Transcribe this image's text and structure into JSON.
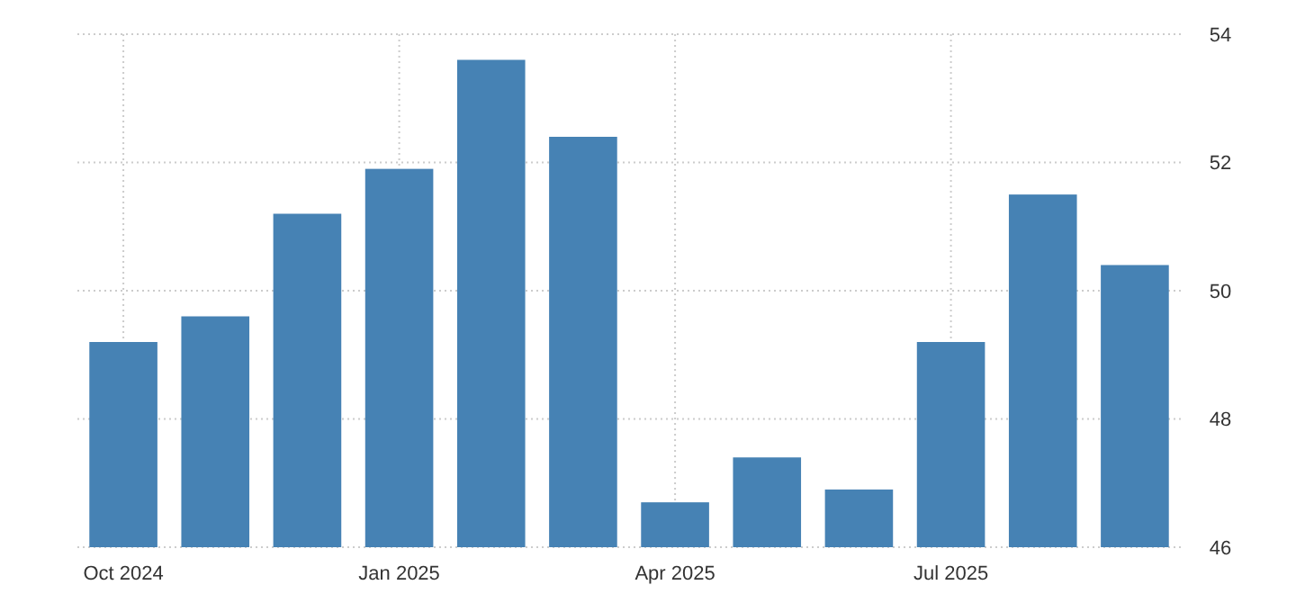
{
  "chart_data": {
    "type": "bar",
    "categories": [
      "Oct 2024",
      null,
      null,
      "Jan 2025",
      null,
      null,
      "Apr 2025",
      null,
      null,
      "Jul 2025",
      null,
      null
    ],
    "values": [
      49.2,
      49.6,
      51.2,
      51.9,
      53.6,
      52.4,
      46.7,
      47.4,
      46.9,
      49.2,
      51.5,
      50.4
    ],
    "color": "#4682b4",
    "ylim": [
      46,
      54
    ],
    "yticks": [
      46,
      48,
      50,
      52,
      54
    ],
    "grid": true
  }
}
